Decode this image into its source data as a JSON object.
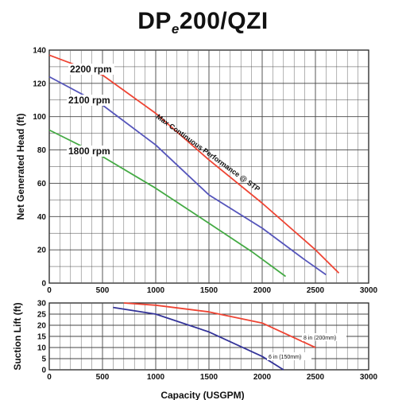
{
  "title": {
    "main": "DP",
    "sub": "e",
    "rest": "200/QZI"
  },
  "chart_data": [
    {
      "type": "line",
      "ylabel": "Net Generated Head (ft)",
      "xlim": [
        0,
        3000
      ],
      "ylim": [
        0,
        140
      ],
      "xticks": [
        "0",
        "500",
        "1000",
        "1500",
        "2000",
        "2500",
        "3000"
      ],
      "yticks": [
        "0",
        "20",
        "40",
        "60",
        "80",
        "100",
        "120",
        "140"
      ],
      "grid": true,
      "annotation": "Max Continuous Performance @ STP",
      "series": [
        {
          "name": "2200 rpm",
          "color": "#ee4433",
          "x": [
            0,
            500,
            1000,
            1500,
            2000,
            2500,
            2720
          ],
          "y": [
            137,
            125,
            102,
            74,
            48,
            20,
            6
          ]
        },
        {
          "name": "2100 rpm",
          "color": "#5555bb",
          "x": [
            0,
            500,
            1000,
            1500,
            2000,
            2400,
            2600
          ],
          "y": [
            124,
            107,
            83,
            53,
            33,
            14,
            5
          ]
        },
        {
          "name": "1800 rpm",
          "color": "#44aa44",
          "x": [
            0,
            500,
            1000,
            1500,
            1900,
            2220
          ],
          "y": [
            92,
            76,
            57,
            36,
            19,
            4
          ]
        }
      ]
    },
    {
      "type": "line",
      "xlabel": "Capacity (USGPM)",
      "ylabel": "Suction Lift (ft)",
      "xlim": [
        0,
        3000
      ],
      "ylim": [
        0,
        30
      ],
      "xticks": [
        "0",
        "500",
        "1000",
        "1500",
        "2000",
        "2500",
        "3000"
      ],
      "yticks": [
        "0",
        "5",
        "10",
        "15",
        "20",
        "25",
        "30"
      ],
      "grid": true,
      "series": [
        {
          "name": "8 in (200mm)",
          "color": "#ee4433",
          "x": [
            700,
            1000,
            1500,
            2000,
            2500
          ],
          "y": [
            30,
            29,
            26,
            21,
            10
          ]
        },
        {
          "name": "6 in (150mm)",
          "color": "#333399",
          "x": [
            600,
            1000,
            1500,
            2000,
            2200
          ],
          "y": [
            28,
            25,
            17,
            6,
            0
          ]
        }
      ]
    }
  ]
}
